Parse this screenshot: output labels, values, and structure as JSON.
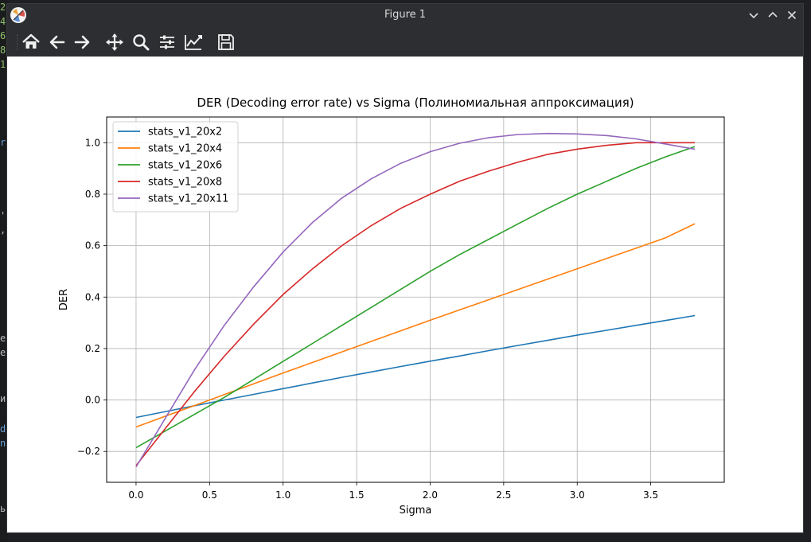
{
  "window": {
    "title": "Figure 1"
  },
  "edge_chars": [
    "2",
    "4",
    "6",
    "8",
    "1",
    "r",
    "'",
    ",",
    "e",
    "e",
    "и",
    "d",
    "n",
    "ь"
  ],
  "toolbar": {
    "buttons": [
      {
        "name": "home-icon",
        "tip": "Home"
      },
      {
        "name": "back-arrow-icon",
        "tip": "Back"
      },
      {
        "name": "forward-arrow-icon",
        "tip": "Forward"
      },
      {
        "name": "pan-icon",
        "tip": "Pan"
      },
      {
        "name": "zoom-icon",
        "tip": "Zoom"
      },
      {
        "name": "subplots-icon",
        "tip": "Subplots"
      },
      {
        "name": "customize-icon",
        "tip": "Customize"
      },
      {
        "name": "save-icon",
        "tip": "Save"
      }
    ]
  },
  "chart_data": {
    "type": "line",
    "title": "DER (Decoding error rate) vs Sigma (Полиномиальная аппроксимация)",
    "xlabel": "Sigma",
    "ylabel": "DER",
    "xlim": [
      -0.2,
      4.0
    ],
    "ylim": [
      -0.32,
      1.1
    ],
    "xticks": [
      0.0,
      0.5,
      1.0,
      1.5,
      2.0,
      2.5,
      3.0,
      3.5
    ],
    "xtick_labels": [
      "0.0",
      "0.5",
      "1.0",
      "1.5",
      "2.0",
      "2.5",
      "3.0",
      "3.5"
    ],
    "yticks": [
      -0.2,
      0.0,
      0.2,
      0.4,
      0.6,
      0.8,
      1.0
    ],
    "ytick_labels": [
      "−0.2",
      "0.0",
      "0.2",
      "0.4",
      "0.6",
      "0.8",
      "1.0"
    ],
    "grid": true,
    "legend_position": "top-left",
    "x": [
      0.0,
      0.2,
      0.4,
      0.6,
      0.8,
      1.0,
      1.2,
      1.4,
      1.6,
      1.8,
      2.0,
      2.2,
      2.4,
      2.6,
      2.8,
      3.0,
      3.2,
      3.4,
      3.6,
      3.8
    ],
    "series": [
      {
        "name": "stats_v1_20x2",
        "color": "#1f77b4",
        "values": [
          -0.068,
          -0.045,
          -0.022,
          0.0,
          0.022,
          0.044,
          0.066,
          0.088,
          0.109,
          0.13,
          0.151,
          0.171,
          0.192,
          0.212,
          0.232,
          0.252,
          0.271,
          0.29,
          0.309,
          0.328
        ]
      },
      {
        "name": "stats_v1_20x4",
        "color": "#ff7f0e",
        "values": [
          -0.105,
          -0.063,
          -0.021,
          0.021,
          0.063,
          0.105,
          0.146,
          0.187,
          0.228,
          0.269,
          0.31,
          0.35,
          0.39,
          0.43,
          0.47,
          0.51,
          0.55,
          0.59,
          0.63,
          0.685
        ]
      },
      {
        "name": "stats_v1_20x6",
        "color": "#2ca02c",
        "values": [
          -0.185,
          -0.12,
          -0.055,
          0.01,
          0.08,
          0.15,
          0.22,
          0.29,
          0.36,
          0.43,
          0.5,
          0.565,
          0.625,
          0.685,
          0.745,
          0.8,
          0.85,
          0.9,
          0.945,
          0.985
        ]
      },
      {
        "name": "stats_v1_20x8",
        "color": "#d62728",
        "values": [
          -0.255,
          -0.11,
          0.035,
          0.17,
          0.295,
          0.41,
          0.51,
          0.6,
          0.678,
          0.745,
          0.8,
          0.85,
          0.89,
          0.925,
          0.955,
          0.975,
          0.99,
          1.0,
          1.0,
          1.0
        ]
      },
      {
        "name": "stats_v1_20x11",
        "color": "#9467bd",
        "values": [
          -0.26,
          -0.07,
          0.12,
          0.29,
          0.44,
          0.575,
          0.69,
          0.785,
          0.86,
          0.92,
          0.965,
          0.998,
          1.02,
          1.032,
          1.036,
          1.034,
          1.028,
          1.015,
          0.995,
          0.975
        ]
      }
    ]
  }
}
